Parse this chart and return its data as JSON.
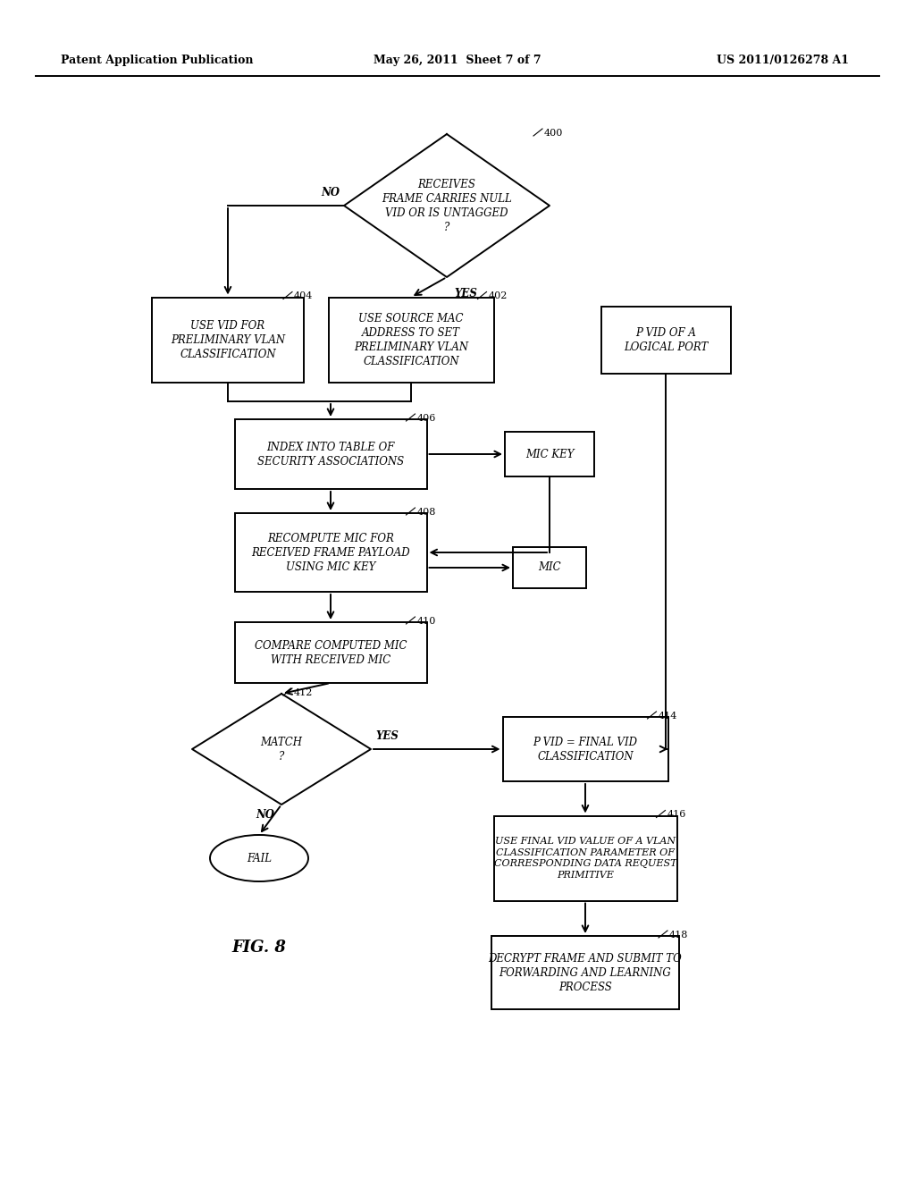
{
  "title_left": "Patent Application Publication",
  "title_center": "May 26, 2011  Sheet 7 of 7",
  "title_right": "US 2011/0126278 A1",
  "fig_label": "FIG. 8",
  "background": "#ffffff",
  "figsize": [
    10.24,
    13.2
  ],
  "dpi": 100
}
